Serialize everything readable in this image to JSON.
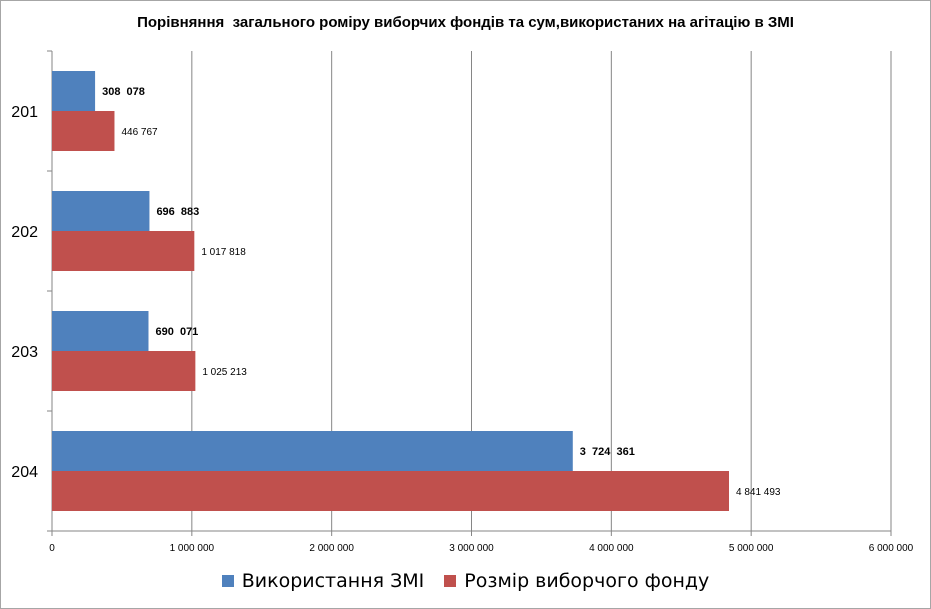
{
  "chart_data": {
    "type": "bar",
    "orientation": "horizontal",
    "title": "Порівняння  загального роміру виборчих фондів та сум,використаних на агітацію в ЗМІ",
    "categories": [
      "201",
      "202",
      "203",
      "204"
    ],
    "series": [
      {
        "name": "Використання ЗМІ",
        "color": "#4f81bd",
        "values": [
          308078,
          696883,
          690071,
          3724361
        ],
        "labels": [
          "308  078",
          "696  883",
          "690  071",
          "3  724  361"
        ]
      },
      {
        "name": "Розмір виборчого фонду",
        "color": "#c0504d",
        "values": [
          446767,
          1017818,
          1025213,
          4841493
        ],
        "labels": [
          "446 767",
          "1 017 818",
          "1 025 213",
          "4 841 493"
        ]
      }
    ],
    "xlim": [
      0,
      6000000
    ],
    "x_ticks": [
      "0",
      "1 000 000",
      "2 000 000",
      "3 000 000",
      "4 000 000",
      "5 000 000",
      "6 000 000"
    ],
    "grid": true,
    "legend_position": "bottom"
  }
}
